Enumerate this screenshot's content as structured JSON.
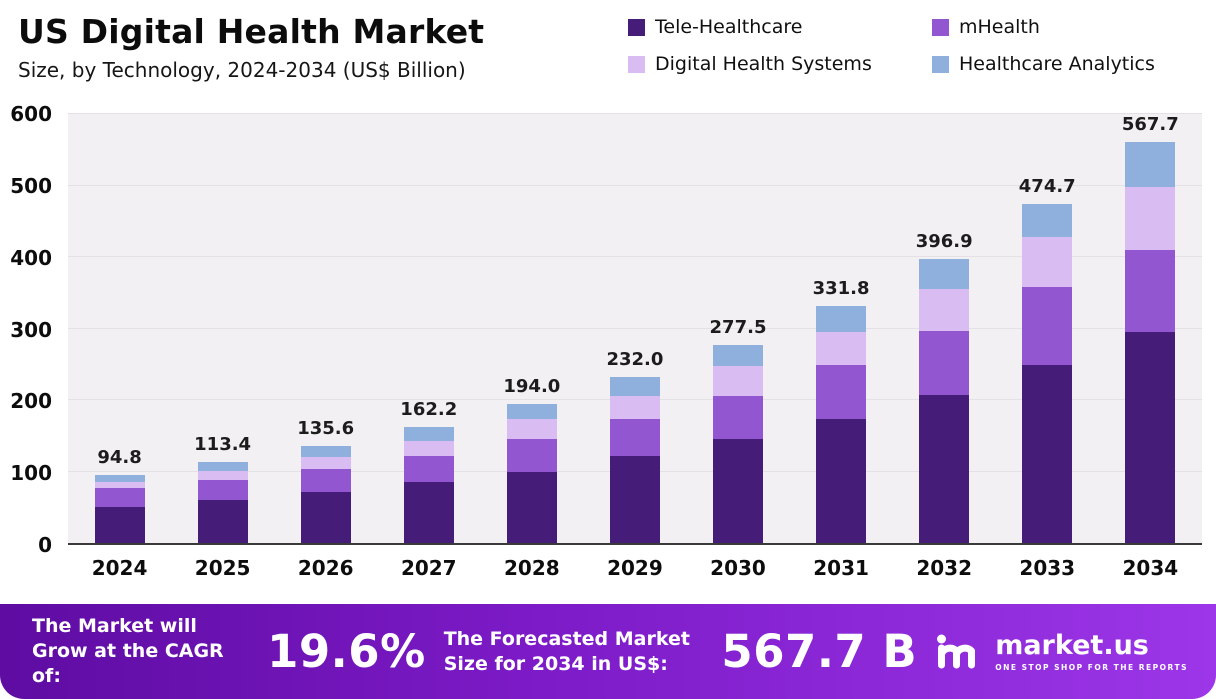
{
  "header": {
    "title": "US Digital Health Market",
    "subtitle": "Size, by Technology, 2024-2034 (US$ Billion)"
  },
  "chart_data": {
    "type": "bar",
    "stacked": true,
    "title": "US Digital Health Market Size, by Technology, 2024-2034 (US$ Billion)",
    "categories": [
      "2024",
      "2025",
      "2026",
      "2027",
      "2028",
      "2029",
      "2030",
      "2031",
      "2032",
      "2033",
      "2034"
    ],
    "series": [
      {
        "name": "Tele-Healthcare",
        "color": "#451c78",
        "values": [
          51,
          60,
          72,
          85,
          100,
          121,
          145,
          173,
          207,
          249,
          299
        ]
      },
      {
        "name": "mHealth",
        "color": "#9257d0",
        "values": [
          26,
          28,
          31,
          37,
          45,
          53,
          61,
          76,
          90,
          109,
          116
        ]
      },
      {
        "name": "Digital Health Systems",
        "color": "#d9bdf2",
        "values": [
          9,
          13,
          17,
          21,
          29,
          31,
          42,
          46,
          58,
          70,
          89
        ]
      },
      {
        "name": "Healthcare Analytics",
        "color": "#8fafdd",
        "values": [
          8.8,
          12.4,
          15.6,
          19.2,
          20,
          27,
          29.5,
          36.8,
          41.9,
          46.7,
          63.7
        ]
      }
    ],
    "totals": [
      94.8,
      113.4,
      135.6,
      162.2,
      194.0,
      232.0,
      277.5,
      331.8,
      396.9,
      474.7,
      567.7
    ],
    "xlabel": "",
    "ylabel": "",
    "ylim": [
      0,
      600
    ],
    "yticks": [
      0,
      100,
      200,
      300,
      400,
      500,
      600
    ],
    "grid": true,
    "legend_position": "top-right"
  },
  "footer": {
    "cagr_label": "The Market will Grow at the CAGR of:",
    "cagr_value": "19.6%",
    "forecast_label": "The Forecasted Market Size for 2034 in US$:",
    "forecast_value": "567.7 B",
    "brand": "market.us",
    "brand_tagline": "ONE STOP SHOP FOR THE REPORTS"
  }
}
